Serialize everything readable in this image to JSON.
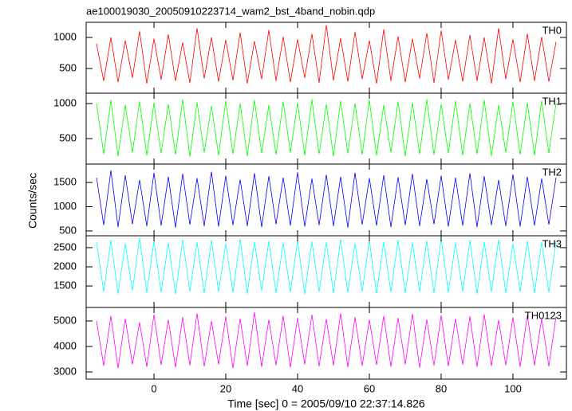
{
  "chart_data": [
    {
      "type": "line",
      "title": "ae100019030_20050910223714_wam2_bst_4band_nobin.qdp",
      "x": [
        -16,
        -14,
        -12,
        -10,
        -8,
        -6,
        -4,
        -2,
        0,
        2,
        4,
        6,
        8,
        10,
        12,
        14,
        16,
        18,
        20,
        22,
        24,
        26,
        28,
        30,
        32,
        34,
        36,
        38,
        40,
        42,
        44,
        46,
        48,
        50,
        52,
        54,
        56,
        58,
        60,
        62,
        64,
        66,
        68,
        70,
        72,
        74,
        76,
        78,
        80,
        82,
        84,
        86,
        88,
        90,
        92,
        94,
        96,
        98,
        100,
        102,
        104,
        106,
        108,
        110,
        112
      ],
      "series": [
        {
          "name": "TH0",
          "color": "#ff0000",
          "values": [
            900,
            300,
            1000,
            280,
            950,
            350,
            1100,
            260,
            980,
            320,
            1050,
            300,
            920,
            270,
            1150,
            340,
            1000,
            290,
            960,
            310,
            1080,
            260,
            940,
            330,
            1120,
            300,
            1010,
            280,
            970,
            350,
            1060,
            270,
            1200,
            310,
            990,
            290,
            1090,
            330,
            950,
            260,
            1130,
            300,
            1020,
            280,
            980,
            340,
            1070,
            270,
            1110,
            320,
            960,
            290,
            1040,
            300,
            1000,
            260,
            1150,
            330,
            970,
            280,
            1060,
            300,
            1010,
            290,
            930
          ]
        }
      ],
      "xlim": [
        -18.9,
        114.9
      ],
      "ylim": [
        103,
        1244
      ],
      "yticks": [
        500,
        1000
      ]
    },
    {
      "type": "line",
      "x": [
        -16,
        -14,
        -12,
        -10,
        -8,
        -6,
        -4,
        -2,
        0,
        2,
        4,
        6,
        8,
        10,
        12,
        14,
        16,
        18,
        20,
        22,
        24,
        26,
        28,
        30,
        32,
        34,
        36,
        38,
        40,
        42,
        44,
        46,
        48,
        50,
        52,
        54,
        56,
        58,
        60,
        62,
        64,
        66,
        68,
        70,
        72,
        74,
        76,
        78,
        80,
        82,
        84,
        86,
        88,
        90,
        92,
        94,
        96,
        98,
        100,
        102,
        104,
        106,
        108,
        110,
        112
      ],
      "series": [
        {
          "name": "TH1",
          "color": "#00ff00",
          "values": [
            1000,
            280,
            1050,
            250,
            980,
            300,
            1030,
            260,
            1010,
            290,
            990,
            270,
            1060,
            240,
            1020,
            300,
            970,
            260,
            1040,
            280,
            1000,
            250,
            1050,
            290,
            980,
            270,
            1030,
            300,
            1010,
            260,
            1060,
            280,
            990,
            250,
            1040,
            290,
            1000,
            270,
            1050,
            260,
            980,
            300,
            1030,
            250,
            1010,
            280,
            1060,
            270,
            990,
            290,
            1040,
            260,
            1000,
            280,
            1050,
            250,
            980,
            300,
            1030,
            270,
            1010,
            260,
            1040,
            290,
            1000
          ]
        }
      ],
      "xlim": [
        -18.9,
        114.9
      ],
      "ylim": [
        136,
        1148
      ],
      "yticks": [
        500,
        1000
      ]
    },
    {
      "type": "line",
      "y_label": "Counts/sec",
      "x": [
        -16,
        -14,
        -12,
        -10,
        -8,
        -6,
        -4,
        -2,
        0,
        2,
        4,
        6,
        8,
        10,
        12,
        14,
        16,
        18,
        20,
        22,
        24,
        26,
        28,
        30,
        32,
        34,
        36,
        38,
        40,
        42,
        44,
        46,
        48,
        50,
        52,
        54,
        56,
        58,
        60,
        62,
        64,
        66,
        68,
        70,
        72,
        74,
        76,
        78,
        80,
        82,
        84,
        86,
        88,
        90,
        92,
        94,
        96,
        98,
        100,
        102,
        104,
        106,
        108,
        110,
        112
      ],
      "series": [
        {
          "name": "TH2",
          "color": "#0000ff",
          "values": [
            1600,
            620,
            1750,
            580,
            1650,
            640,
            1550,
            600,
            1700,
            610,
            1620,
            570,
            1680,
            630,
            1590,
            600,
            1720,
            590,
            1640,
            620,
            1560,
            600,
            1690,
            580,
            1630,
            640,
            1600,
            610,
            1710,
            590,
            1580,
            620,
            1660,
            600,
            1620,
            570,
            1700,
            630,
            1590,
            610,
            1650,
            580,
            1610,
            620,
            1680,
            600,
            1570,
            640,
            1640,
            590,
            1600,
            610,
            1690,
            580,
            1630,
            620,
            1550,
            600,
            1670,
            590,
            1620,
            610,
            1580,
            630,
            1600
          ]
        }
      ],
      "xlim": [
        -18.9,
        114.9
      ],
      "ylim": [
        400,
        1880
      ],
      "yticks": [
        500,
        1000,
        1500
      ]
    },
    {
      "type": "line",
      "x": [
        -16,
        -14,
        -12,
        -10,
        -8,
        -6,
        -4,
        -2,
        0,
        2,
        4,
        6,
        8,
        10,
        12,
        14,
        16,
        18,
        20,
        22,
        24,
        26,
        28,
        30,
        32,
        34,
        36,
        38,
        40,
        42,
        44,
        46,
        48,
        50,
        52,
        54,
        56,
        58,
        60,
        62,
        64,
        66,
        68,
        70,
        72,
        74,
        76,
        78,
        80,
        82,
        84,
        86,
        88,
        90,
        92,
        94,
        96,
        98,
        100,
        102,
        104,
        106,
        108,
        110,
        112
      ],
      "series": [
        {
          "name": "TH3",
          "color": "#00ffff",
          "values": [
            2650,
            1350,
            2700,
            1300,
            2600,
            1380,
            2750,
            1320,
            2680,
            1340,
            2620,
            1290,
            2710,
            1360,
            2640,
            1310,
            2690,
            1350,
            2600,
            1330,
            2730,
            1300,
            2650,
            1370,
            2680,
            1320,
            2620,
            1340,
            2700,
            1290,
            2660,
            1350,
            2640,
            1310,
            2720,
            1330,
            2610,
            1360,
            2690,
            1300,
            2650,
            1340,
            2700,
            1320,
            2630,
            1350,
            2680,
            1310,
            2740,
            1330,
            2620,
            1360,
            2690,
            1300,
            2650,
            1340,
            2710,
            1320,
            2600,
            1350,
            2680,
            1310,
            2640,
            1330,
            2660
          ]
        }
      ],
      "xlim": [
        -18.9,
        114.9
      ],
      "ylim": [
        940,
        2810
      ],
      "yticks": [
        1500,
        2000,
        2500
      ]
    },
    {
      "type": "line",
      "x_label": "Time [sec] 0 = 2005/09/10 22:37:14.826",
      "x": [
        -16,
        -14,
        -12,
        -10,
        -8,
        -6,
        -4,
        -2,
        0,
        2,
        4,
        6,
        8,
        10,
        12,
        14,
        16,
        18,
        20,
        22,
        24,
        26,
        28,
        30,
        32,
        34,
        36,
        38,
        40,
        42,
        44,
        46,
        48,
        50,
        52,
        54,
        56,
        58,
        60,
        62,
        64,
        66,
        68,
        70,
        72,
        74,
        76,
        78,
        80,
        82,
        84,
        86,
        88,
        90,
        92,
        94,
        96,
        98,
        100,
        102,
        104,
        106,
        108,
        110,
        112
      ],
      "series": [
        {
          "name": "TH0123",
          "color": "#ff00ff",
          "values": [
            5000,
            3250,
            5200,
            3150,
            5100,
            3300,
            4950,
            3200,
            5250,
            3280,
            5050,
            3180,
            5150,
            3260,
            5300,
            3220,
            5000,
            3300,
            5180,
            3150,
            5100,
            3240,
            5350,
            3200,
            5050,
            3270,
            5200,
            3180,
            5120,
            3300,
            5250,
            3220,
            5080,
            3260,
            5300,
            3190,
            5150,
            3240,
            5050,
            3280,
            5200,
            3210,
            5120,
            3300,
            5280,
            3170,
            5060,
            3250,
            5220,
            3230,
            5100,
            3290,
            5180,
            3200,
            5260,
            3240,
            5040,
            3270,
            5150,
            3200,
            5230,
            3260,
            5090,
            3220,
            5180
          ]
        }
      ],
      "xlim": [
        -18.9,
        114.9
      ],
      "ylim": [
        2720,
        5530
      ],
      "yticks": [
        3000,
        4000,
        5000
      ],
      "xticks": [
        0,
        20,
        40,
        60,
        80,
        100
      ]
    }
  ]
}
